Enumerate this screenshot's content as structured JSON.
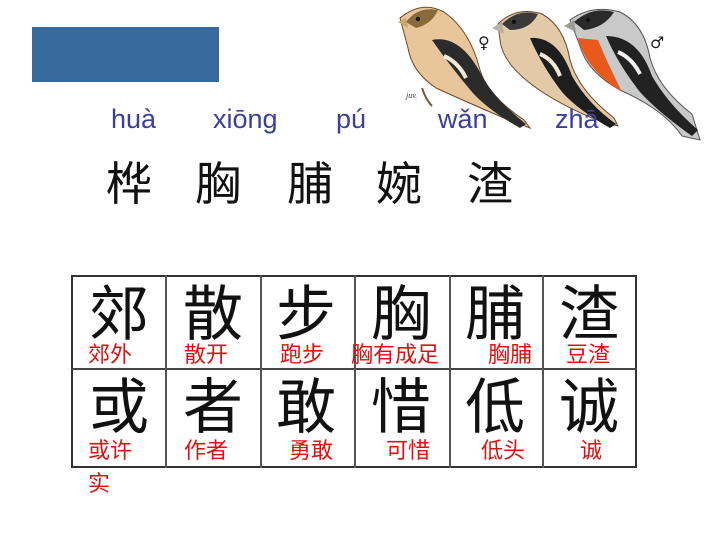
{
  "title_banner": {
    "color": "#376a9c"
  },
  "image": {
    "caption_juv": "juv.",
    "female_symbol": "♀",
    "male_symbol": "♂"
  },
  "pinyin": [
    "huà",
    "xiōng",
    "pú",
    "wǎn",
    "zhā"
  ],
  "hanzi": [
    "桦",
    "胸",
    "脯",
    "婉",
    "渣"
  ],
  "grid": {
    "row1": {
      "chars": [
        "郊",
        "散",
        "步",
        "胸",
        "脯",
        "渣"
      ],
      "words": [
        "郊外",
        "散开",
        "跑步",
        "胸有成足",
        "胸脯",
        "豆渣"
      ]
    },
    "row2": {
      "chars": [
        "或",
        "者",
        "敢",
        "惜",
        "低",
        "诚"
      ],
      "words": [
        "或许",
        "作者",
        "勇敢",
        "可惜",
        "低头",
        "诚"
      ],
      "extra": "实"
    }
  },
  "colors": {
    "pinyin": "#3a3f9e",
    "word": "#e01010"
  }
}
